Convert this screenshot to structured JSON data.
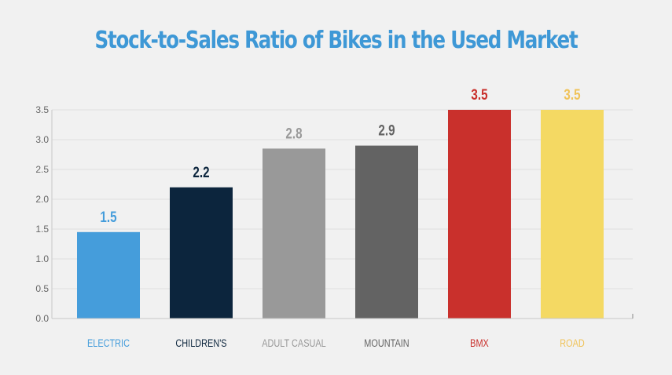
{
  "chart_data": {
    "type": "bar",
    "title": "Stock-to-Sales Ratio of Bikes in the Used Market",
    "xlabel": "",
    "ylabel": "",
    "ylim": [
      0,
      3.5
    ],
    "yticks": [
      "0.0",
      "0.5",
      "1.0",
      "1.5",
      "2.0",
      "2.5",
      "3.0",
      "3.5"
    ],
    "grid": true,
    "categories": [
      "ELECTRIC",
      "CHILDREN'S",
      "ADULT CASUAL",
      "MOUNTAIN",
      "BMX",
      "ROAD"
    ],
    "values": [
      1.45,
      2.2,
      2.85,
      2.9,
      3.5,
      3.5
    ],
    "value_labels": [
      "1.5",
      "2.2",
      "2.8",
      "2.9",
      "3.5",
      "3.5"
    ],
    "colors": [
      "#459ddb",
      "#0c253d",
      "#999999",
      "#636363",
      "#c9302c",
      "#f4d963"
    ],
    "label_colors": [
      "#459ddb",
      "#0c253d",
      "#999999",
      "#636363",
      "#c9302c",
      "#f0c35a"
    ]
  }
}
